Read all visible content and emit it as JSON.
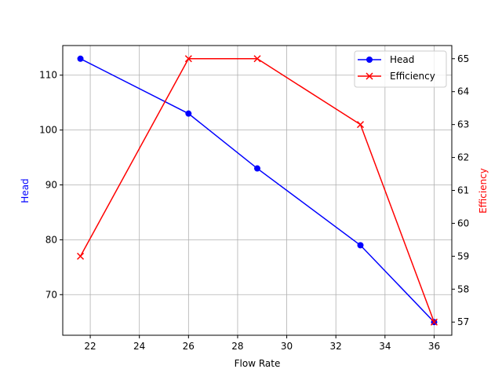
{
  "chart_data": {
    "type": "line",
    "title": "",
    "xlabel": "Flow Rate",
    "ylabel": "Head",
    "ylabel_right": "Efficiency",
    "x": [
      21.6,
      26.0,
      28.8,
      33.0,
      36.0
    ],
    "series": [
      {
        "name": "Head",
        "axis": "left",
        "color": "#0000ff",
        "marker": "circle",
        "values": [
          113,
          103,
          93,
          79,
          65
        ]
      },
      {
        "name": "Efficiency",
        "axis": "right",
        "color": "#ff0000",
        "marker": "x",
        "values": [
          59,
          65,
          65,
          63,
          57
        ]
      }
    ],
    "xlim": [
      20.88,
      36.72
    ],
    "ylim": [
      62.6,
      115.4
    ],
    "ylim_right": [
      56.6,
      65.4
    ],
    "xticks": [
      22,
      24,
      26,
      28,
      30,
      32,
      34,
      36
    ],
    "yticks": [
      70,
      80,
      90,
      100,
      110
    ],
    "yticks_right": [
      57,
      58,
      59,
      60,
      61,
      62,
      63,
      64,
      65
    ],
    "grid": true,
    "legend_position": "upper right"
  },
  "labels": {
    "xlabel": "Flow Rate",
    "ylabel_left": "Head",
    "ylabel_right": "Efficiency",
    "legend": [
      "Head",
      "Efficiency"
    ]
  }
}
